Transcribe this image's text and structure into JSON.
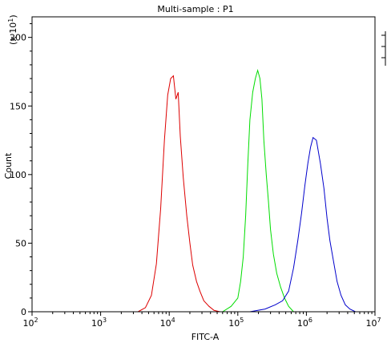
{
  "chart_data": {
    "type": "line",
    "title": "Multi-sample : P1",
    "xlabel": "FITC-A",
    "ylabel": "Count",
    "y_multiplier_label": "(x 10",
    "y_multiplier_exp": "1",
    "y_multiplier_close": ")",
    "x_scale": "log",
    "xlim": [
      100,
      10000000
    ],
    "ylim": [
      0,
      215
    ],
    "grid": false,
    "legend": "top-right",
    "x_ticks": [
      {
        "value": 100,
        "base": "10",
        "exp": "2"
      },
      {
        "value": 1000,
        "base": "10",
        "exp": "3"
      },
      {
        "value": 10000,
        "base": "10",
        "exp": "4"
      },
      {
        "value": 100000,
        "base": "10",
        "exp": "5"
      },
      {
        "value": 1000000,
        "base": "10",
        "exp": "6"
      },
      {
        "value": 10000000,
        "base": "10",
        "exp": "7"
      }
    ],
    "y_ticks": [
      {
        "value": 0,
        "label": "0"
      },
      {
        "value": 50,
        "label": "50"
      },
      {
        "value": 100,
        "label": "100"
      },
      {
        "value": 150,
        "label": "150"
      },
      {
        "value": 200,
        "label": "200"
      }
    ],
    "series": [
      {
        "color": "#dd0000",
        "x": [
          3500,
          4500,
          5500,
          6500,
          7500,
          8500,
          9500,
          10500,
          11500,
          12500,
          13500,
          14500,
          16000,
          18000,
          20000,
          22000,
          25000,
          28000,
          32000,
          38000,
          45000,
          55000
        ],
        "y": [
          0,
          3,
          12,
          35,
          75,
          125,
          158,
          170,
          172,
          155,
          160,
          128,
          98,
          70,
          50,
          34,
          22,
          15,
          8,
          4,
          1,
          0
        ]
      },
      {
        "color": "#00dd00",
        "x": [
          60000,
          80000,
          100000,
          110000,
          120000,
          130000,
          140000,
          150000,
          165000,
          180000,
          195000,
          210000,
          225000,
          240000,
          260000,
          280000,
          300000,
          330000,
          370000,
          420000,
          480000,
          550000,
          650000
        ],
        "y": [
          0,
          4,
          10,
          22,
          40,
          70,
          108,
          140,
          160,
          170,
          176,
          170,
          155,
          125,
          100,
          80,
          60,
          42,
          28,
          18,
          10,
          4,
          0
        ]
      },
      {
        "color": "#0000cc",
        "x": [
          150000,
          250000,
          350000,
          450000,
          550000,
          650000,
          750000,
          850000,
          950000,
          1050000,
          1150000,
          1250000,
          1400000,
          1600000,
          1800000,
          2000000,
          2200000,
          2500000,
          2800000,
          3200000,
          3700000,
          4300000,
          5200000
        ],
        "y": [
          0,
          2,
          5,
          8,
          15,
          32,
          52,
          72,
          92,
          108,
          120,
          127,
          125,
          108,
          90,
          68,
          52,
          36,
          22,
          12,
          5,
          2,
          0
        ]
      }
    ]
  }
}
